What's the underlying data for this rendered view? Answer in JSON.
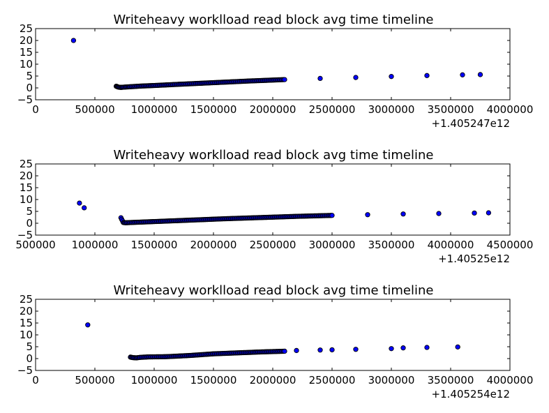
{
  "chart_data": [
    {
      "type": "scatter",
      "title": "Writeheavy worklload read block avg time timeline",
      "xlabel": "",
      "ylabel": "",
      "x_offset_label": "+1.405247e12",
      "xlim": [
        0,
        4000000
      ],
      "ylim": [
        -5,
        25
      ],
      "x_ticks": [
        0,
        500000,
        1000000,
        1500000,
        2000000,
        2500000,
        3000000,
        3500000,
        4000000
      ],
      "x_tick_labels": [
        "0",
        "500000",
        "1000000",
        "1500000",
        "2000000",
        "2500000",
        "3000000",
        "3500000",
        "4000000"
      ],
      "y_ticks": [
        -5,
        0,
        5,
        10,
        15,
        20,
        25
      ],
      "y_tick_labels": [
        "−5",
        "0",
        "5",
        "10",
        "15",
        "20",
        "25"
      ],
      "grid": false,
      "marker_color": "#0000ff",
      "series": [
        {
          "points": [
            [
              320000,
              20.0
            ],
            [
              680000,
              0.7
            ],
            [
              690000,
              0.5
            ],
            [
              700000,
              0.3
            ],
            [
              720000,
              0.2
            ],
            [
              740000,
              0.3
            ],
            [
              770000,
              0.4
            ],
            [
              800000,
              0.5
            ],
            [
              900000,
              0.8
            ],
            [
              1000000,
              1.0
            ],
            [
              1200000,
              1.5
            ],
            [
              1500000,
              2.2
            ],
            [
              1800000,
              2.9
            ],
            [
              2100000,
              3.5
            ],
            [
              2400000,
              4.0
            ],
            [
              2700000,
              4.4
            ],
            [
              3000000,
              4.8
            ],
            [
              3300000,
              5.2
            ],
            [
              3600000,
              5.5
            ],
            [
              3750000,
              5.6
            ]
          ]
        }
      ]
    },
    {
      "type": "scatter",
      "title": "Writeheavy worklload read block avg time timeline",
      "xlabel": "",
      "ylabel": "",
      "x_offset_label": "+1.40525e12",
      "xlim": [
        500000,
        4500000
      ],
      "ylim": [
        -5,
        25
      ],
      "x_ticks": [
        500000,
        1000000,
        1500000,
        2000000,
        2500000,
        3000000,
        3500000,
        4000000,
        4500000
      ],
      "x_tick_labels": [
        "500000",
        "1000000",
        "1500000",
        "2000000",
        "2500000",
        "3000000",
        "3500000",
        "4000000",
        "4500000"
      ],
      "y_ticks": [
        -5,
        0,
        5,
        10,
        15,
        20,
        25
      ],
      "y_tick_labels": [
        "−5",
        "0",
        "5",
        "10",
        "15",
        "20",
        "25"
      ],
      "grid": false,
      "marker_color": "#0000ff",
      "series": [
        {
          "points": [
            [
              870000,
              8.5
            ],
            [
              910000,
              6.5
            ],
            [
              1220000,
              2.3
            ],
            [
              1240000,
              0.3
            ],
            [
              1260000,
              0.2
            ],
            [
              1300000,
              0.3
            ],
            [
              1400000,
              0.5
            ],
            [
              1600000,
              0.9
            ],
            [
              1800000,
              1.3
            ],
            [
              2100000,
              1.9
            ],
            [
              2400000,
              2.4
            ],
            [
              2700000,
              2.9
            ],
            [
              3000000,
              3.3
            ],
            [
              3300000,
              3.6
            ],
            [
              3600000,
              3.9
            ],
            [
              3900000,
              4.1
            ],
            [
              4200000,
              4.3
            ],
            [
              4320000,
              4.4
            ]
          ]
        }
      ]
    },
    {
      "type": "scatter",
      "title": "Writeheavy worklload read block avg time timeline",
      "xlabel": "",
      "ylabel": "",
      "x_offset_label": "+1.405254e12",
      "xlim": [
        0,
        4000000
      ],
      "ylim": [
        -5,
        25
      ],
      "x_ticks": [
        0,
        500000,
        1000000,
        1500000,
        2000000,
        2500000,
        3000000,
        3500000,
        4000000
      ],
      "x_tick_labels": [
        "0",
        "500000",
        "1000000",
        "1500000",
        "2000000",
        "2500000",
        "3000000",
        "3500000",
        "4000000"
      ],
      "y_ticks": [
        -5,
        0,
        5,
        10,
        15,
        20,
        25
      ],
      "y_tick_labels": [
        "−5",
        "0",
        "5",
        "10",
        "15",
        "20",
        "25"
      ],
      "grid": false,
      "marker_color": "#0000ff",
      "series": [
        {
          "points": [
            [
              440000,
              14.2
            ],
            [
              800000,
              0.6
            ],
            [
              820000,
              0.4
            ],
            [
              850000,
              0.3
            ],
            [
              880000,
              0.5
            ],
            [
              950000,
              0.7
            ],
            [
              1100000,
              0.8
            ],
            [
              1300000,
              1.3
            ],
            [
              1500000,
              2.0
            ],
            [
              1800000,
              2.6
            ],
            [
              1900000,
              2.8
            ],
            [
              2100000,
              3.1
            ],
            [
              2200000,
              3.4
            ],
            [
              2400000,
              3.6
            ],
            [
              2500000,
              3.7
            ],
            [
              2700000,
              3.9
            ],
            [
              3000000,
              4.2
            ],
            [
              3100000,
              4.5
            ],
            [
              3300000,
              4.7
            ],
            [
              3560000,
              4.9
            ]
          ]
        }
      ]
    }
  ]
}
